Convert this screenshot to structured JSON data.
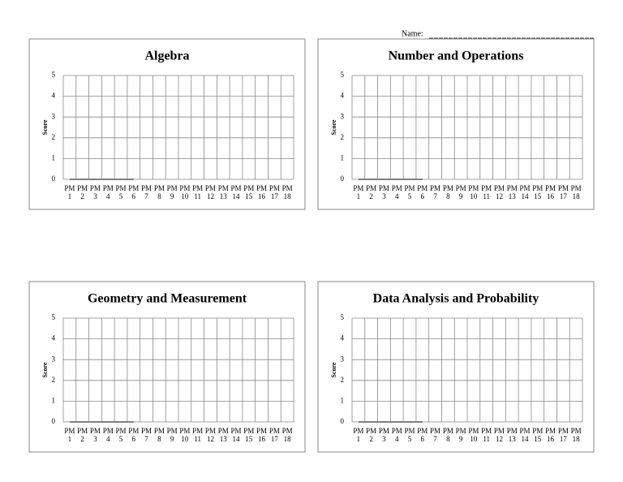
{
  "name_label": "Name:",
  "chart_data": [
    {
      "type": "line",
      "title": "Algebra",
      "y_label": "Score",
      "categories": [
        "PM 1",
        "PM 2",
        "PM 3",
        "PM 4",
        "PM 5",
        "PM 6",
        "PM 7",
        "PM 8",
        "PM 9",
        "PM 10",
        "PM 11",
        "PM 12",
        "PM 13",
        "PM 14",
        "PM 15",
        "PM 16",
        "PM 17",
        "PM 18"
      ],
      "values": [
        0,
        0,
        0,
        0,
        0,
        0,
        null,
        null,
        null,
        null,
        null,
        null,
        null,
        null,
        null,
        null,
        null,
        null
      ],
      "color": "#808080",
      "ylim": [
        0,
        5
      ],
      "yticks": [
        0,
        1,
        2,
        3,
        4,
        5
      ],
      "grid": true
    },
    {
      "type": "line",
      "title": "Number and Operations",
      "y_label": "Score",
      "categories": [
        "PM 1",
        "PM 2",
        "PM 3",
        "PM 4",
        "PM 5",
        "PM 6",
        "PM 7",
        "PM 8",
        "PM 9",
        "PM 10",
        "PM 11",
        "PM 12",
        "PM 13",
        "PM 14",
        "PM 15",
        "PM 16",
        "PM 17",
        "PM 18"
      ],
      "values": [
        0,
        0,
        0,
        0,
        0,
        0,
        null,
        null,
        null,
        null,
        null,
        null,
        null,
        null,
        null,
        null,
        null,
        null
      ],
      "color": "#808080",
      "ylim": [
        0,
        5
      ],
      "yticks": [
        0,
        1,
        2,
        3,
        4,
        5
      ],
      "grid": true
    },
    {
      "type": "line",
      "title": "Geometry and Measurement",
      "y_label": "Score",
      "categories": [
        "PM 1",
        "PM 2",
        "PM 3",
        "PM 4",
        "PM 5",
        "PM 6",
        "PM 7",
        "PM 8",
        "PM 9",
        "PM 10",
        "PM 11",
        "PM 12",
        "PM 13",
        "PM 14",
        "PM 15",
        "PM 16",
        "PM 17",
        "PM 18"
      ],
      "values": [
        0,
        0,
        0,
        0,
        0,
        0,
        null,
        null,
        null,
        null,
        null,
        null,
        null,
        null,
        null,
        null,
        null,
        null
      ],
      "color": "#808080",
      "ylim": [
        0,
        5
      ],
      "yticks": [
        0,
        1,
        2,
        3,
        4,
        5
      ],
      "grid": true
    },
    {
      "type": "line",
      "title": "Data Analysis and Probability",
      "y_label": "Score",
      "categories": [
        "PM 1",
        "PM 2",
        "PM 3",
        "PM 4",
        "PM 5",
        "PM 6",
        "PM 7",
        "PM 8",
        "PM 9",
        "PM 10",
        "PM 11",
        "PM 12",
        "PM 13",
        "PM 14",
        "PM 15",
        "PM 16",
        "PM 17",
        "PM 18"
      ],
      "values": [
        0,
        0,
        0,
        0,
        0,
        0,
        null,
        null,
        null,
        null,
        null,
        null,
        null,
        null,
        null,
        null,
        null,
        null
      ],
      "color": "#808080",
      "ylim": [
        0,
        5
      ],
      "yticks": [
        0,
        1,
        2,
        3,
        4,
        5
      ],
      "grid": true
    }
  ]
}
